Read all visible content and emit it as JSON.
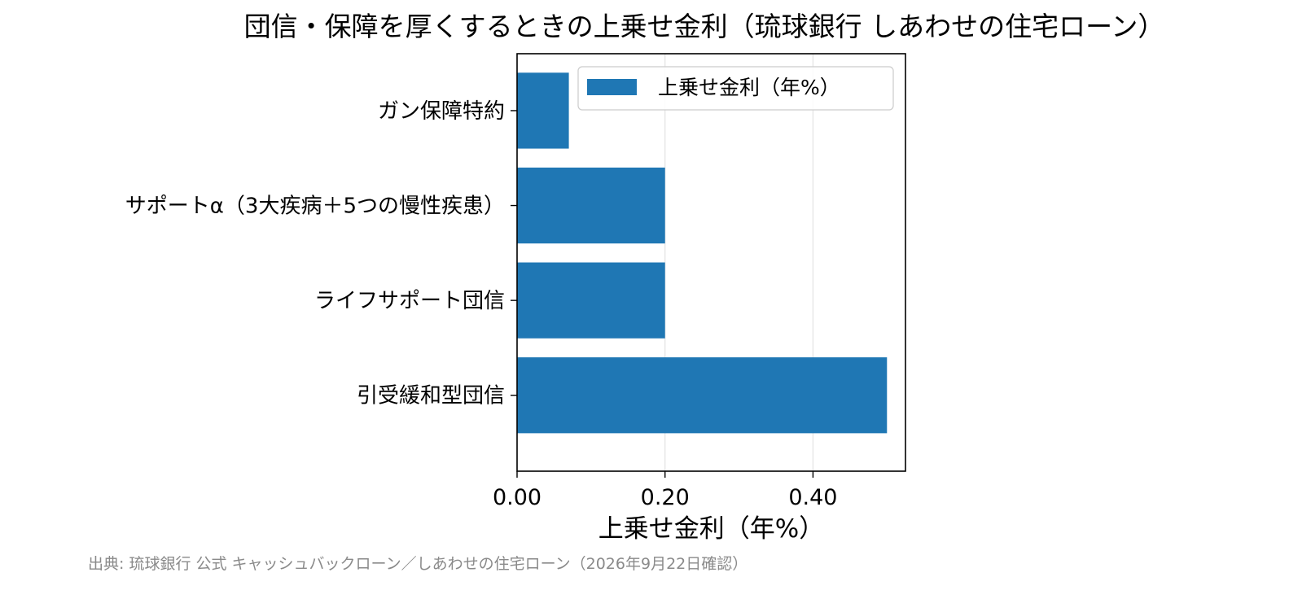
{
  "chart_data": {
    "type": "bar",
    "orientation": "horizontal",
    "title": "団信・保障を厚くするときの上乗せ金利（琉球銀行 しあわせの住宅ローン）",
    "categories": [
      "ガン保障特約",
      "サポートα（3大疾病＋5つの慢性疾患）",
      "ライフサポート団信",
      "引受緩和型団信"
    ],
    "series": [
      {
        "name": "上乗せ金利（年%）",
        "values": [
          0.07,
          0.2,
          0.2,
          0.5
        ],
        "color": "#1f77b4"
      }
    ],
    "xlabel": "上乗せ金利（年%）",
    "ylabel": "",
    "xlim": [
      0,
      0.525
    ],
    "xticks": [
      "0.00",
      "0.20",
      "0.40"
    ],
    "grid": "vertical",
    "legend_position": "top-right"
  },
  "source_note": "出典: 琉球銀行 公式 キャッシュバックローン／しあわせの住宅ローン（2026年9月22日確認）"
}
